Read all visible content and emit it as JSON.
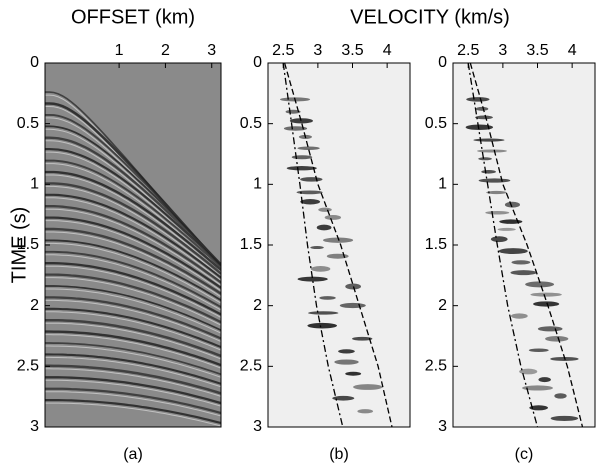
{
  "chart_data": [
    {
      "type": "image",
      "title": "OFFSET (km)",
      "ylabel": "TIME (s)",
      "caption": "(a)",
      "xlim": [
        -0.6,
        3.2
      ],
      "xticks": [
        1,
        2,
        3
      ],
      "ylim": [
        0,
        3
      ],
      "yticks": [
        0,
        0.5,
        1,
        1.5,
        2,
        2.5,
        3
      ],
      "y_reversed": true
    },
    {
      "type": "line",
      "title": "VELOCITY (km/s)",
      "caption": "(b)",
      "xlim": [
        2.28,
        4.33
      ],
      "xticks": [
        2.5,
        3,
        3.5,
        4
      ],
      "ylim": [
        0,
        3
      ],
      "yticks": [
        0,
        0.5,
        1,
        1.5,
        2,
        2.5,
        3
      ],
      "y_reversed": true,
      "series": [
        {
          "color": "#000000",
          "dash": "dash-dot",
          "x": [
            2.5,
            2.62,
            2.74,
            2.85,
            2.98,
            3.15,
            3.36
          ],
          "values": [
            0,
            0.5,
            1,
            1.5,
            2,
            2.5,
            3
          ]
        },
        {
          "color": "#000000",
          "dash": "dash",
          "x": [
            2.52,
            2.77,
            3.0,
            3.33,
            3.6,
            3.87,
            4.07
          ],
          "values": [
            0,
            0.5,
            1,
            1.5,
            2,
            2.5,
            3
          ]
        }
      ]
    },
    {
      "type": "line",
      "caption": "(c)",
      "xlim": [
        2.28,
        4.33
      ],
      "xticks": [
        2.5,
        3,
        3.5,
        4
      ],
      "ylim": [
        0,
        3
      ],
      "yticks": [
        0,
        0.5,
        1,
        1.5,
        2,
        2.5,
        3
      ],
      "y_reversed": true,
      "series": [
        {
          "color": "#000000",
          "dash": "dash-dot",
          "x": [
            2.5,
            2.64,
            2.78,
            2.92,
            3.07,
            3.26,
            3.5
          ],
          "values": [
            0,
            0.5,
            1,
            1.5,
            2,
            2.5,
            3
          ]
        },
        {
          "color": "#000000",
          "dash": "dash",
          "x": [
            2.53,
            2.78,
            3.0,
            3.35,
            3.65,
            3.93,
            4.15
          ],
          "values": [
            0,
            0.5,
            1,
            1.5,
            2,
            2.5,
            3
          ]
        }
      ]
    }
  ]
}
